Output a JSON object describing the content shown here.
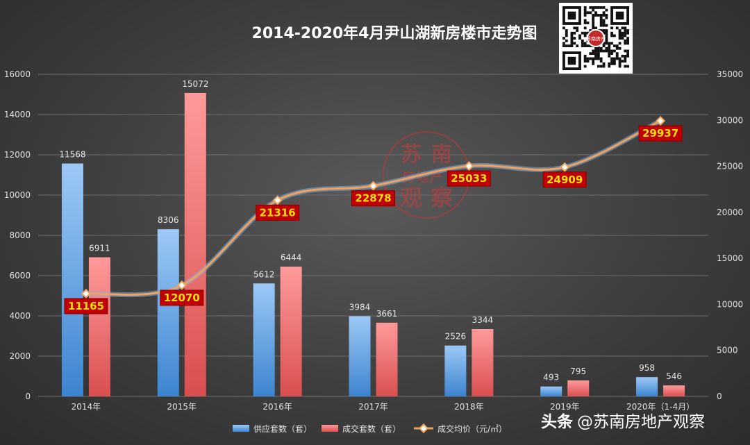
{
  "chart_data": {
    "type": "bar",
    "title": "2014-2020年4月尹山湖新房楼市走势图",
    "categories": [
      "2014年",
      "2015年",
      "2016年",
      "2017年",
      "2018年",
      "2019年",
      "2020年（1-4月）"
    ],
    "series": [
      {
        "name": "供应套数（套）",
        "type": "bar",
        "axis": "left",
        "color": "#5b9bd5",
        "values": [
          11568,
          8306,
          5612,
          3984,
          2526,
          493,
          958
        ]
      },
      {
        "name": "成交套数（套）",
        "type": "bar",
        "axis": "left",
        "color": "#f07f7f",
        "values": [
          6911,
          15072,
          6444,
          3661,
          3344,
          795,
          546
        ]
      },
      {
        "name": "成交均价（元/㎡）",
        "type": "line",
        "axis": "right",
        "color": "#f3a25b",
        "values": [
          11165,
          12070,
          21316,
          22878,
          25033,
          24909,
          29937
        ]
      }
    ],
    "y_left": {
      "min": 0,
      "max": 16000,
      "step": 2000,
      "ticks": [
        "0",
        "2000",
        "4000",
        "6000",
        "8000",
        "10000",
        "12000",
        "14000",
        "16000"
      ]
    },
    "y_right": {
      "min": 0,
      "max": 35000,
      "step": 5000,
      "ticks": [
        "0",
        "5000",
        "10000",
        "15000",
        "20000",
        "25000",
        "30000",
        "35000"
      ]
    },
    "grid": true,
    "legend_position": "bottom"
  },
  "watermark": {
    "chars": [
      "苏",
      "南",
      "房",
      "地",
      "产",
      "观",
      "察"
    ]
  },
  "qr_code": {
    "badge_text": "苏南房产"
  },
  "footer": {
    "brand": "头条",
    "handle": "@苏南房地产观察"
  },
  "colors": {
    "background": "#3e3e3e",
    "label_box": "#c00000",
    "label_text": "#ffe000"
  }
}
